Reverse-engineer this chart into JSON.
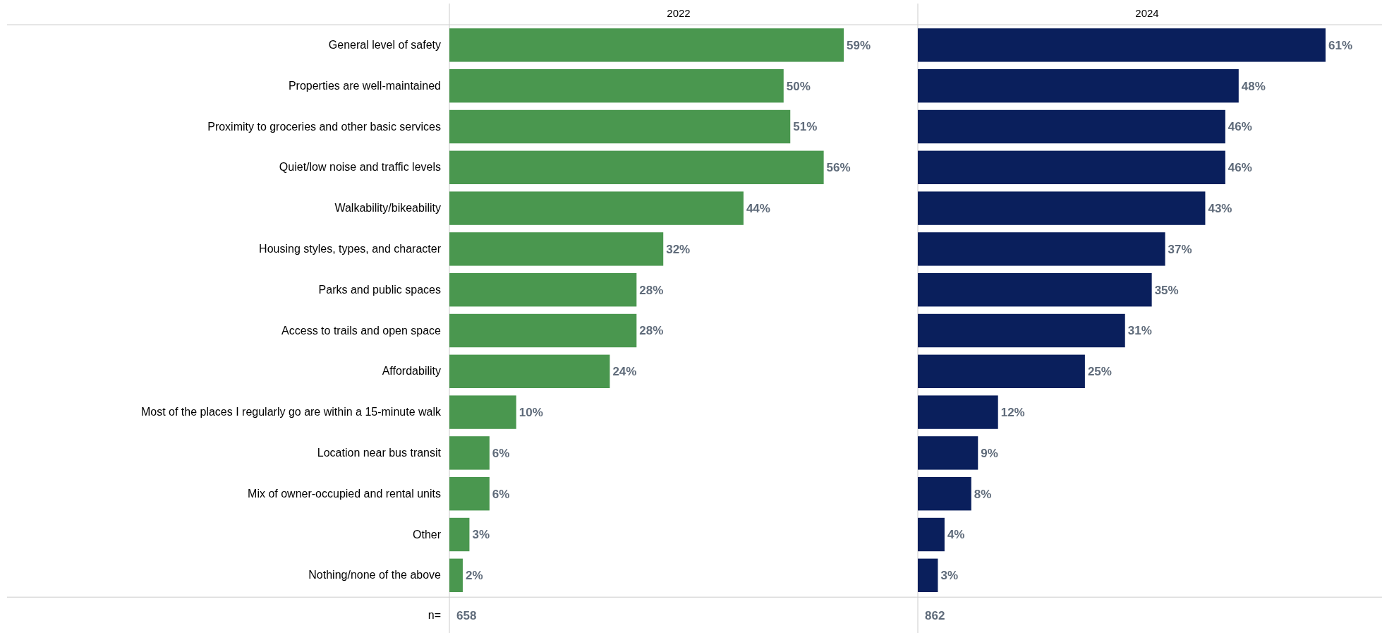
{
  "chart_data": [
    {
      "type": "bar",
      "orientation": "horizontal",
      "title": "2022",
      "ylabel": "n=",
      "annotations": [
        "658"
      ],
      "categories": [
        "General level of safety",
        "Properties are well-maintained",
        "Proximity to groceries and other basic services",
        "Quiet/low noise and traffic levels",
        "Walkability/bikeability",
        "Housing styles, types, and character",
        "Parks and public spaces",
        "Access to trails and open space",
        "Affordability",
        "Most of the places I regularly go are within a 15-minute walk",
        "Location near bus transit",
        "Mix of owner-occupied and rental units",
        "Other",
        "Nothing/none of the above"
      ],
      "color": "#4a974f",
      "values": [
        59,
        50,
        51,
        56,
        44,
        32,
        28,
        28,
        24,
        10,
        6,
        6,
        3,
        2
      ],
      "value_labels": [
        "59%",
        "50%",
        "51%",
        "56%",
        "44%",
        "32%",
        "28%",
        "28%",
        "24%",
        "10%",
        "6%",
        "6%",
        "3%",
        "2%"
      ]
    },
    {
      "type": "bar",
      "orientation": "horizontal",
      "title": "2024",
      "annotations": [
        "862"
      ],
      "color": "#0a1f5c",
      "values": [
        61,
        48,
        46,
        46,
        43,
        37,
        35,
        31,
        25,
        12,
        9,
        8,
        4,
        3
      ],
      "value_labels": [
        "61%",
        "48%",
        "46%",
        "46%",
        "43%",
        "37%",
        "35%",
        "31%",
        "25%",
        "12%",
        "9%",
        "8%",
        "4%",
        "3%"
      ]
    }
  ]
}
